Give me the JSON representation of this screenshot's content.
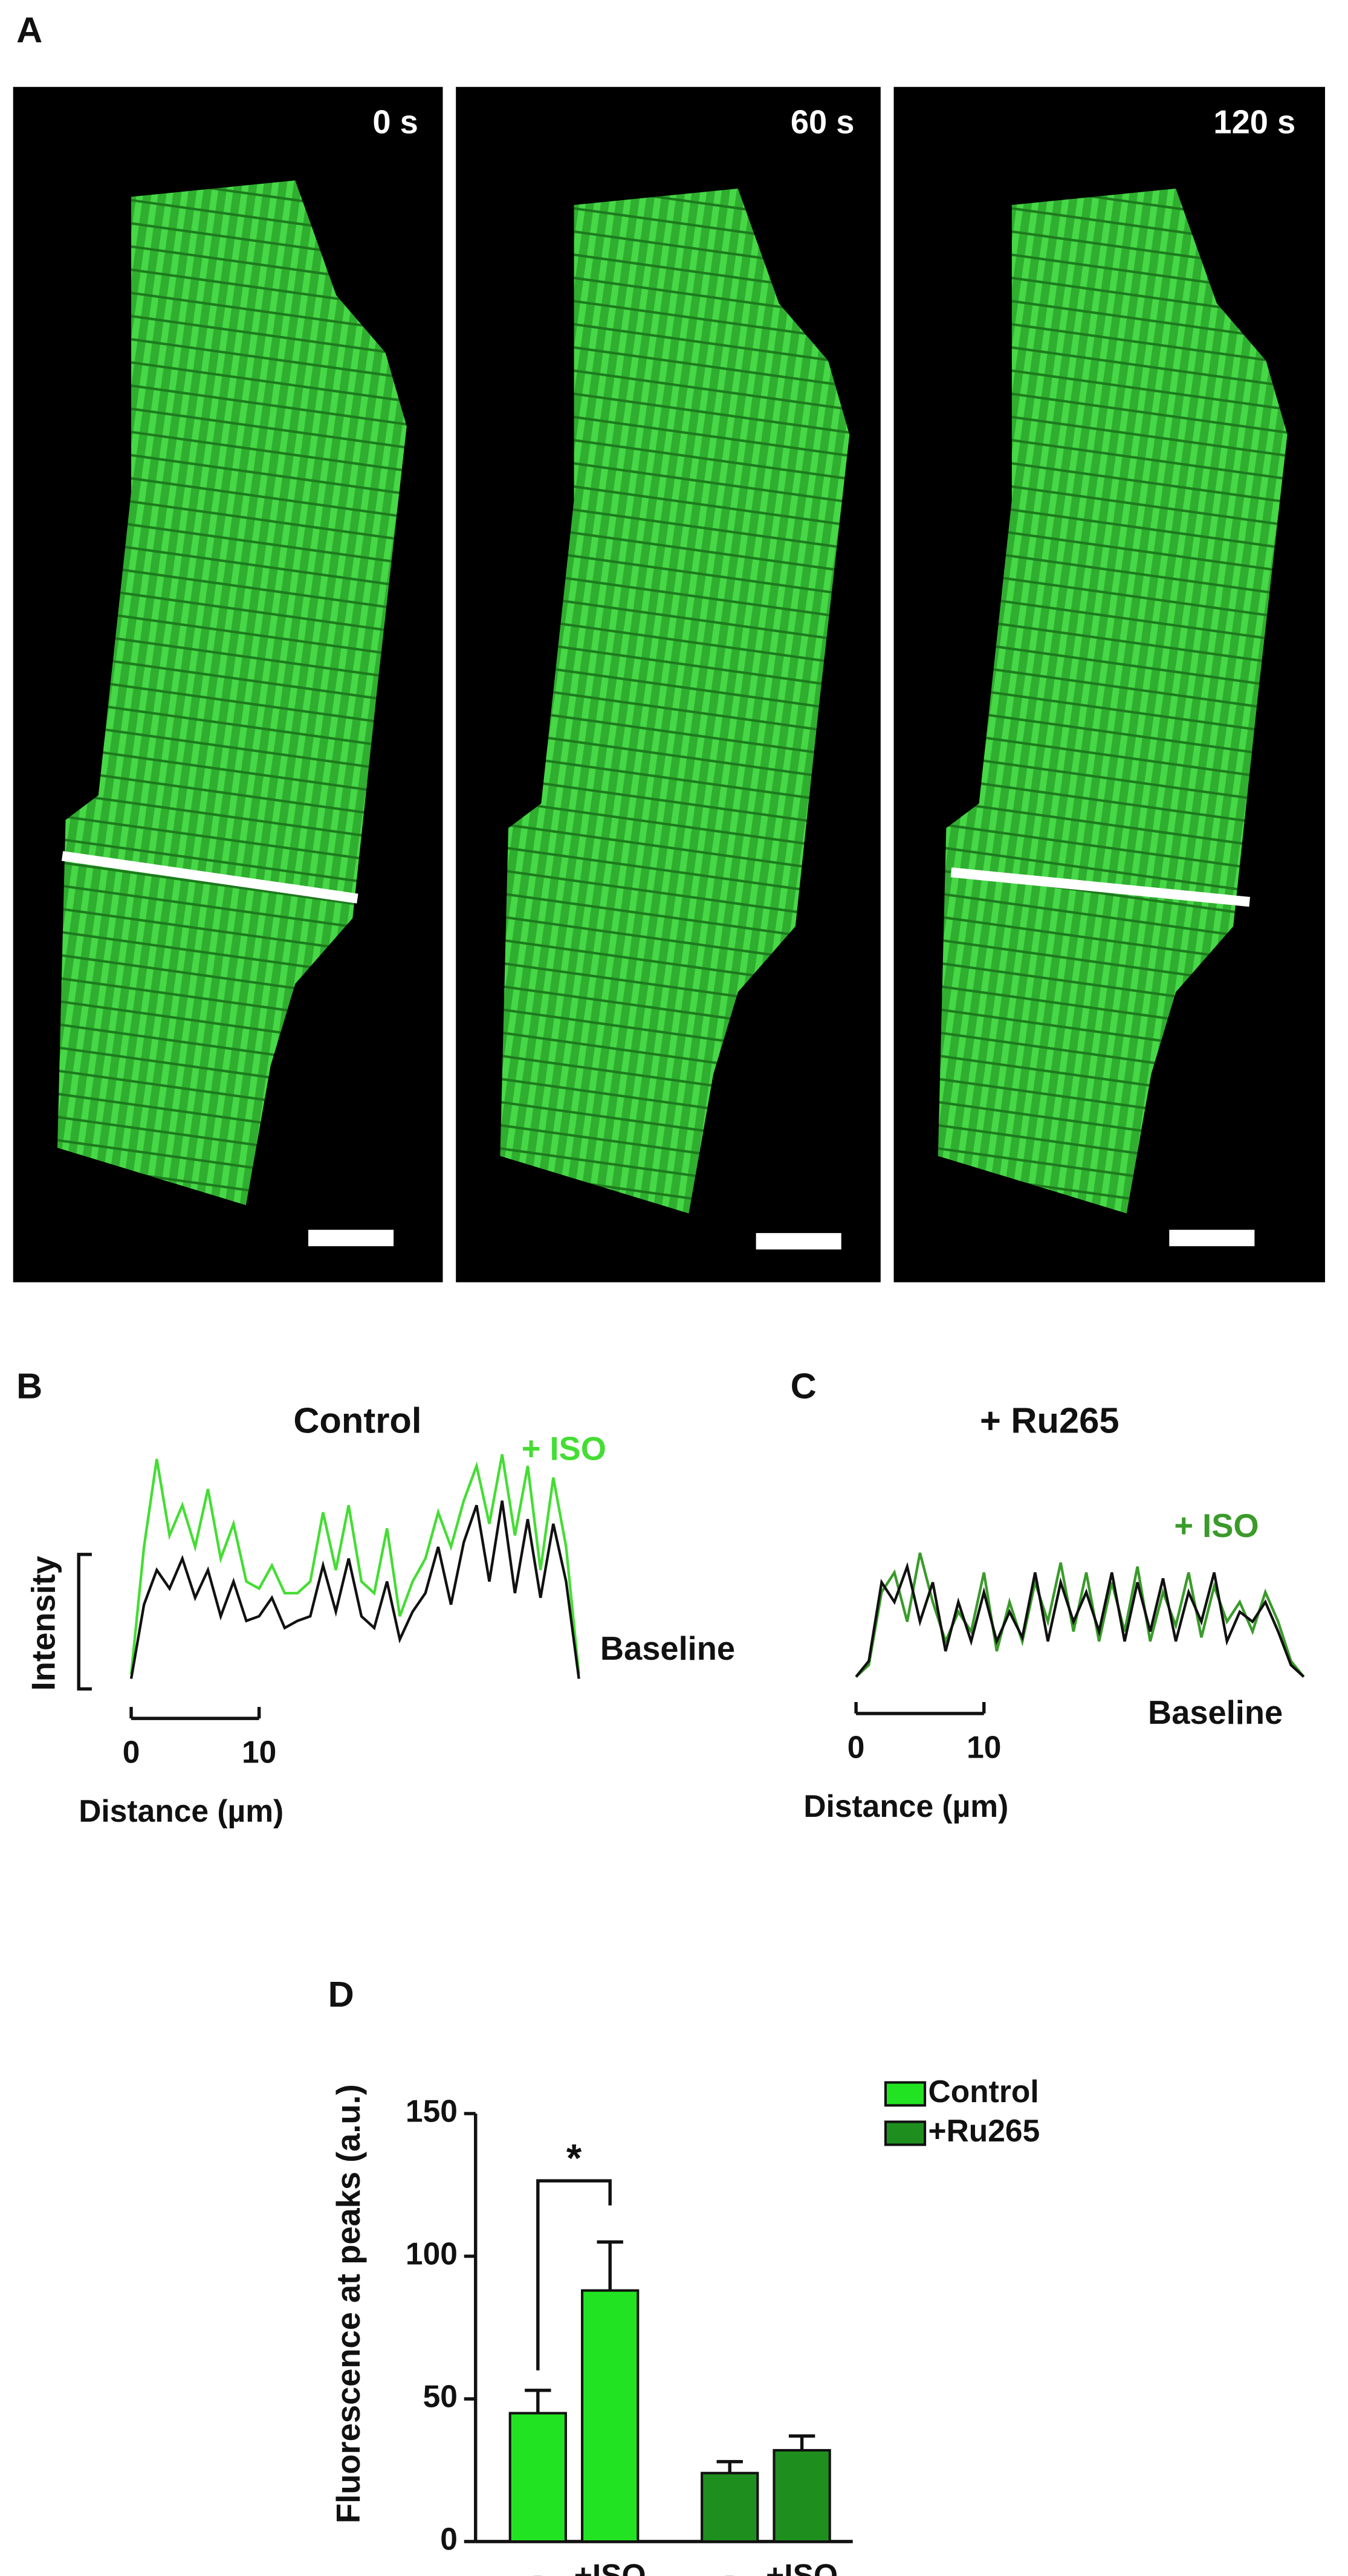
{
  "panel_labels": [
    "A",
    "B",
    "C",
    "D"
  ],
  "panel_a": {
    "timestamps": [
      "0 s",
      "60 s",
      "120 s"
    ]
  },
  "chart_data": [
    {
      "type": "line",
      "title": "Control",
      "ylabel": "Intensity",
      "xlabel": "Distance (µm)",
      "x": [
        0,
        1,
        2,
        3,
        4,
        5,
        6,
        7,
        8,
        9,
        10,
        11,
        12,
        13,
        14,
        15,
        16,
        17,
        18,
        19,
        20,
        21,
        22,
        23,
        24,
        25,
        26,
        27,
        28,
        29,
        30,
        31,
        32,
        33,
        34,
        35
      ],
      "xlim": [
        0,
        35
      ],
      "xticks": [
        0,
        10
      ],
      "ylim": [
        0,
        100
      ],
      "series": [
        {
          "name": "+ ISO",
          "color": "#44dd33",
          "values": [
            5,
            60,
            98,
            65,
            78,
            60,
            85,
            55,
            70,
            45,
            42,
            52,
            40,
            40,
            45,
            75,
            50,
            78,
            45,
            40,
            68,
            30,
            45,
            55,
            75,
            60,
            80,
            95,
            70,
            100,
            65,
            95,
            50,
            90,
            60,
            5
          ]
        },
        {
          "name": "Baseline",
          "color": "#111111",
          "values": [
            3,
            35,
            50,
            42,
            55,
            38,
            50,
            30,
            45,
            28,
            30,
            38,
            25,
            28,
            30,
            52,
            32,
            55,
            30,
            25,
            45,
            20,
            32,
            40,
            60,
            35,
            62,
            78,
            45,
            80,
            40,
            72,
            38,
            70,
            45,
            3
          ]
        }
      ]
    },
    {
      "type": "line",
      "title": "+ Ru265",
      "xlabel": "Distance (µm)",
      "x": [
        0,
        1,
        2,
        3,
        4,
        5,
        6,
        7,
        8,
        9,
        10,
        11,
        12,
        13,
        14,
        15,
        16,
        17,
        18,
        19,
        20,
        21,
        22,
        23,
        24,
        25,
        26,
        27,
        28,
        29,
        30,
        31,
        32,
        33,
        34,
        35
      ],
      "xlim": [
        0,
        35
      ],
      "xticks": [
        0,
        10
      ],
      "ylim": [
        0,
        100
      ],
      "series": [
        {
          "name": "+ ISO",
          "color": "#3a9a2a",
          "values": [
            2,
            8,
            45,
            55,
            30,
            65,
            40,
            20,
            35,
            25,
            55,
            15,
            40,
            20,
            50,
            30,
            60,
            25,
            55,
            20,
            50,
            25,
            58,
            20,
            45,
            28,
            55,
            22,
            48,
            30,
            40,
            25,
            45,
            30,
            10,
            2
          ]
        },
        {
          "name": "Baseline",
          "color": "#111111",
          "values": [
            2,
            10,
            50,
            40,
            58,
            30,
            50,
            15,
            40,
            20,
            45,
            20,
            35,
            22,
            55,
            20,
            50,
            30,
            45,
            25,
            55,
            20,
            50,
            25,
            52,
            20,
            45,
            30,
            55,
            20,
            35,
            30,
            40,
            25,
            8,
            2
          ]
        }
      ]
    },
    {
      "type": "bar",
      "ylabel": "Fluorescence at peaks (a.u.)",
      "categories": [
        "-",
        "+ISO",
        "-",
        "+ISO"
      ],
      "ylim": [
        0,
        150
      ],
      "yticks": [
        0,
        50,
        100,
        150
      ],
      "series": [
        {
          "name": "Control",
          "color": "#22e322",
          "values": [
            45,
            88,
            null,
            null
          ],
          "errors": [
            8,
            17,
            null,
            null
          ]
        },
        {
          "name": "+Ru265",
          "color": "#1e8f1e",
          "values": [
            null,
            null,
            24,
            32
          ],
          "errors": [
            null,
            null,
            4,
            5
          ]
        }
      ],
      "annotations": [
        "*"
      ]
    }
  ]
}
